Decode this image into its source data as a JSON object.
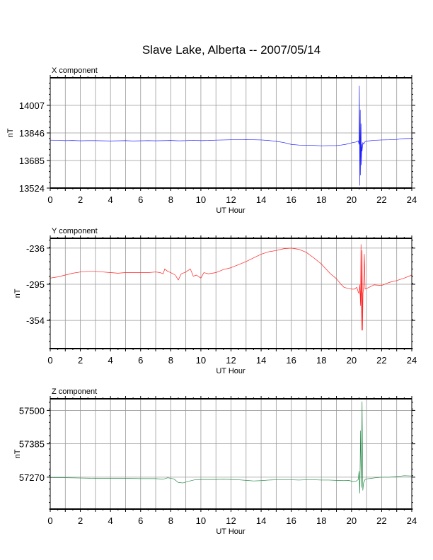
{
  "title": "Slave Lake, Alberta -- 2007/05/14",
  "chart_data": [
    {
      "type": "line",
      "component_label": "X component",
      "xlabel": "UT Hour",
      "ylabel": "nT",
      "xlim": [
        0,
        24
      ],
      "ylim": [
        13524,
        14168
      ],
      "x_ticks": [
        0,
        2,
        4,
        6,
        8,
        10,
        12,
        14,
        16,
        18,
        20,
        22,
        24
      ],
      "y_ticks": [
        13524,
        13685,
        13846,
        14007
      ],
      "grid": true,
      "color": "#2020ff",
      "series": [
        {
          "x": [
            0,
            0.5,
            1,
            1.5,
            2,
            2.5,
            3,
            3.5,
            4,
            4.5,
            5,
            5.5,
            6,
            6.5,
            7,
            7.5,
            8,
            8.5,
            9,
            9.5,
            10,
            10.5,
            11,
            11.5,
            12,
            12.5,
            13,
            13.5,
            14,
            14.5,
            15,
            15.5,
            16,
            16.5,
            17,
            17.5,
            18,
            18.5,
            19,
            19.3,
            19.6,
            19.9,
            20.1,
            20.3,
            20.4,
            20.45,
            20.5,
            20.52,
            20.55,
            20.58,
            20.6,
            20.63,
            20.65,
            20.68,
            20.7,
            20.75,
            20.8,
            20.9,
            21,
            21.2,
            21.5,
            22,
            22.5,
            23,
            23.5,
            24
          ],
          "y": [
            13804,
            13803,
            13801,
            13802,
            13800,
            13801,
            13801,
            13800,
            13799,
            13800,
            13801,
            13799,
            13800,
            13801,
            13800,
            13801,
            13802,
            13800,
            13801,
            13803,
            13801,
            13802,
            13804,
            13805,
            13806,
            13806,
            13807,
            13806,
            13805,
            13802,
            13797,
            13790,
            13779,
            13775,
            13774,
            13773,
            13771,
            13772,
            13772,
            13775,
            13779,
            13786,
            13790,
            13793,
            13797,
            13800,
            13780,
            14120,
            13540,
            13980,
            13600,
            13900,
            13660,
            13780,
            13740,
            13790,
            13780,
            13795,
            13798,
            13800,
            13803,
            13805,
            13806,
            13808,
            13813,
            13814
          ]
        }
      ]
    },
    {
      "type": "line",
      "component_label": "Y component",
      "xlabel": "UT Hour",
      "ylabel": "nT",
      "xlim": [
        0,
        24
      ],
      "ylim": [
        -400,
        -220
      ],
      "x_ticks": [
        0,
        2,
        4,
        6,
        8,
        10,
        12,
        14,
        16,
        18,
        20,
        22,
        24
      ],
      "y_ticks": [
        -236,
        -295,
        -354
      ],
      "grid": true,
      "color": "#ff2020",
      "series": [
        {
          "x": [
            0,
            0.5,
            1,
            1.5,
            2,
            2.5,
            3,
            3.5,
            4,
            4.5,
            5,
            5.5,
            6,
            6.5,
            7,
            7.3,
            7.5,
            7.6,
            7.8,
            8,
            8.3,
            8.5,
            8.7,
            9,
            9.3,
            9.5,
            9.7,
            10,
            10.2,
            10.5,
            11,
            11.5,
            12,
            12.5,
            13,
            13.5,
            14,
            14.5,
            15,
            15.5,
            16,
            16.5,
            17,
            17.5,
            18,
            18.3,
            18.6,
            19,
            19.3,
            19.5,
            19.8,
            20,
            20.2,
            20.35,
            20.45,
            20.5,
            20.55,
            20.6,
            20.63,
            20.66,
            20.7,
            20.73,
            20.76,
            20.8,
            20.85,
            20.9,
            21,
            21.5,
            22,
            22.5,
            23,
            23.5,
            24
          ],
          "y": [
            -285,
            -283,
            -280,
            -277,
            -275,
            -274,
            -274,
            -275,
            -276,
            -277,
            -276,
            -276,
            -276,
            -276,
            -275,
            -276,
            -278,
            -270,
            -274,
            -276,
            -280,
            -288,
            -278,
            -275,
            -270,
            -282,
            -280,
            -285,
            -276,
            -278,
            -276,
            -271,
            -268,
            -263,
            -258,
            -252,
            -246,
            -242,
            -240,
            -237,
            -236,
            -238,
            -243,
            -252,
            -262,
            -270,
            -278,
            -286,
            -295,
            -300,
            -302,
            -303,
            -303,
            -300,
            -308,
            -310,
            -296,
            -330,
            -230,
            -370,
            -240,
            -370,
            -310,
            -300,
            -246,
            -303,
            -302,
            -296,
            -297,
            -292,
            -289,
            -285,
            -280
          ]
        }
      ]
    },
    {
      "type": "line",
      "component_label": "Z component",
      "xlabel": "UT Hour",
      "ylabel": "nT",
      "xlim": [
        0,
        24
      ],
      "ylim": [
        57160,
        57540
      ],
      "x_ticks": [
        0,
        2,
        4,
        6,
        8,
        10,
        12,
        14,
        16,
        18,
        20,
        22,
        24
      ],
      "y_ticks": [
        57270,
        57385,
        57500
      ],
      "grid": true,
      "color": "#2a8a4a",
      "series": [
        {
          "x": [
            0,
            1,
            2,
            3,
            4,
            5,
            6,
            7,
            7.5,
            7.8,
            8.2,
            8.5,
            8.8,
            9.2,
            9.6,
            10,
            10.5,
            11,
            11.5,
            12,
            12.5,
            13,
            13.5,
            14,
            14.5,
            15,
            15.5,
            16,
            16.5,
            17,
            17.5,
            18,
            18.5,
            19,
            19.5,
            19.8,
            20.1,
            20.3,
            20.45,
            20.5,
            20.55,
            20.6,
            20.65,
            20.7,
            20.75,
            20.8,
            20.9,
            21,
            21.3,
            21.6,
            22,
            22.5,
            23,
            23.5,
            24
          ],
          "y": [
            57268,
            57268,
            57267,
            57266,
            57266,
            57266,
            57265,
            57265,
            57263,
            57268,
            57264,
            57252,
            57250,
            57256,
            57261,
            57262,
            57262,
            57262,
            57263,
            57262,
            57261,
            57259,
            57257,
            57258,
            57260,
            57261,
            57261,
            57261,
            57260,
            57261,
            57261,
            57260,
            57260,
            57259,
            57258,
            57259,
            57255,
            57256,
            57262,
            57290,
            57215,
            57430,
            57235,
            57530,
            57225,
            57250,
            57262,
            57264,
            57266,
            57268,
            57270,
            57270,
            57272,
            57275,
            57274
          ]
        }
      ]
    }
  ]
}
